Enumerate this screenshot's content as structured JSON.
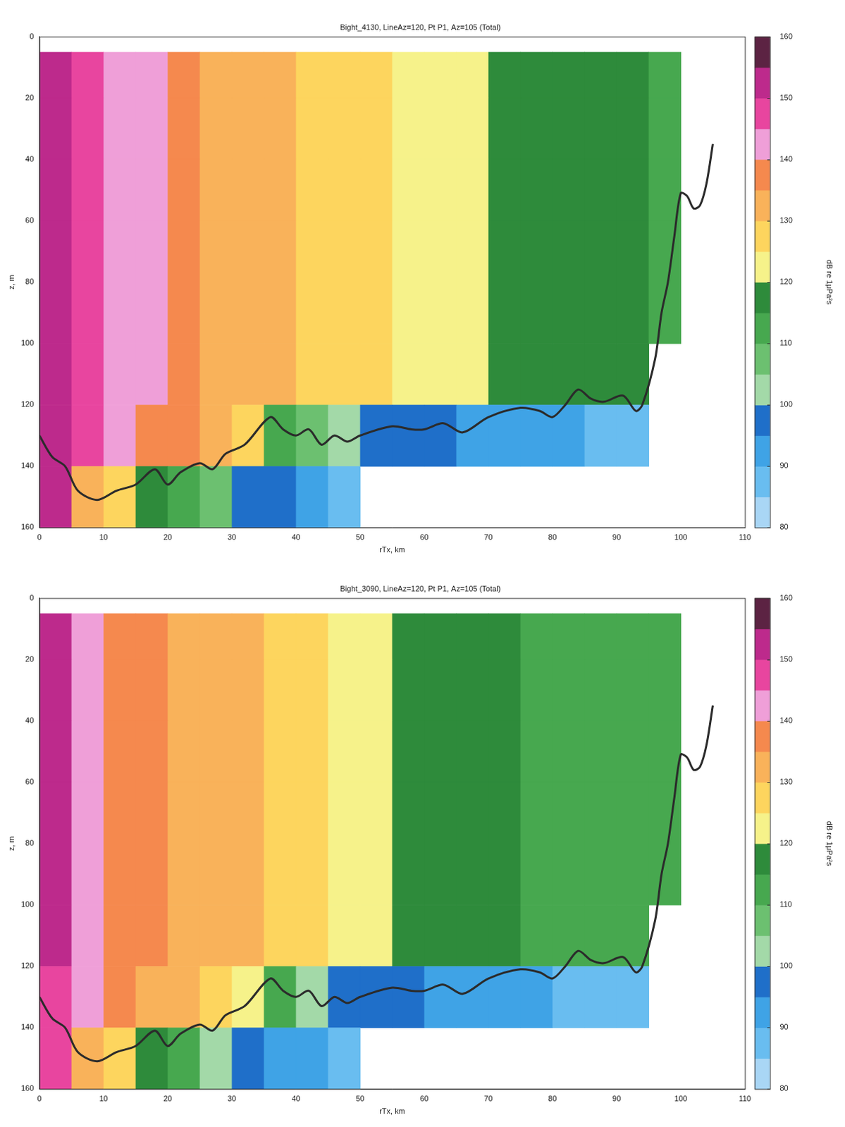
{
  "chart_data": [
    {
      "type": "heatmap",
      "title": "Bight_4130, LineAz=120, Pt P1, Az=105 (Total)",
      "x_label": "rTx, km",
      "y_label": "z, m",
      "xlim": [
        0,
        110
      ],
      "xticks": [
        0,
        10,
        20,
        30,
        40,
        50,
        60,
        70,
        80,
        90,
        100,
        110
      ],
      "ylim": [
        160,
        0
      ],
      "yticks": [
        0,
        20,
        40,
        60,
        80,
        100,
        120,
        140,
        160
      ],
      "grid": false,
      "x_edges": [
        0,
        5,
        10,
        15,
        20,
        25,
        30,
        35,
        40,
        45,
        50,
        55,
        60,
        65,
        70,
        75,
        80,
        85,
        90,
        95,
        100
      ],
      "y_edges": [
        5,
        20,
        40,
        60,
        80,
        100,
        120,
        140,
        160
      ],
      "cells": [
        [
          152,
          147,
          142,
          140,
          136,
          134,
          132,
          130,
          129,
          127,
          126,
          124,
          122,
          121,
          119,
          118,
          117,
          116,
          115,
          114
        ],
        [
          152,
          147,
          142,
          140,
          136,
          134,
          132,
          130,
          129,
          127,
          126,
          124,
          122,
          121,
          119,
          118,
          117,
          116,
          115,
          114
        ],
        [
          152,
          147,
          142,
          140,
          136,
          134,
          132,
          130,
          129,
          127,
          126,
          124,
          122,
          121,
          119,
          118,
          117,
          116,
          115,
          114
        ],
        [
          152,
          147,
          142,
          140,
          136,
          134,
          132,
          130,
          129,
          127,
          126,
          124,
          122,
          121,
          119,
          118,
          117,
          116,
          115,
          114
        ],
        [
          152,
          147,
          142,
          140,
          136,
          134,
          132,
          130,
          129,
          127,
          126,
          124,
          122,
          121,
          119,
          118,
          117,
          116,
          115,
          114
        ],
        [
          152,
          147,
          142,
          140,
          136,
          134,
          132,
          130,
          129,
          127,
          126,
          124,
          122,
          121,
          119,
          118,
          117,
          116,
          115,
          null
        ],
        [
          150,
          146,
          141,
          138,
          135,
          132,
          125,
          110,
          105,
          100,
          97,
          96,
          95,
          94,
          93,
          92,
          90,
          88,
          87,
          null
        ],
        [
          150,
          133,
          128,
          118,
          112,
          106,
          99,
          95,
          91,
          88,
          null,
          null,
          null,
          null,
          null,
          null,
          null,
          null,
          null,
          null
        ]
      ],
      "colorbar": {
        "label": "dB re 1μPa²s",
        "range": [
          80,
          160
        ],
        "ticks": [
          80,
          90,
          100,
          110,
          120,
          130,
          140,
          150,
          160
        ],
        "levels": [
          80,
          85,
          90,
          95,
          100,
          105,
          110,
          115,
          120,
          125,
          130,
          135,
          140,
          145,
          150,
          155,
          160
        ],
        "colors": [
          "#a9d6f5",
          "#69bdf0",
          "#3fa3e6",
          "#1f6fc9",
          "#a3d9a8",
          "#6cc070",
          "#47a84f",
          "#2e8b3b",
          "#f6f28a",
          "#fdd55e",
          "#f9b25a",
          "#f5894e",
          "#ef9fd8",
          "#e8459f",
          "#bd2a8c",
          "#5c2343"
        ]
      },
      "series": [
        {
          "type": "line",
          "color": "#2b2b2b",
          "x": [
            0,
            2,
            4,
            6,
            9,
            12,
            15,
            18,
            20,
            22,
            25,
            27,
            29,
            32,
            36,
            38,
            40,
            42,
            44,
            46,
            48,
            50,
            55,
            58,
            60,
            63,
            66,
            70,
            75,
            78,
            80,
            82,
            84,
            86,
            88,
            91,
            93,
            94,
            96,
            97,
            98,
            99,
            100,
            101,
            102,
            103,
            104,
            105
          ],
          "values": [
            130,
            137,
            140,
            148,
            151,
            148,
            146,
            141,
            146,
            142,
            139,
            141,
            136,
            133,
            124,
            128,
            130,
            128,
            133,
            130,
            132,
            130,
            127,
            128,
            128,
            126,
            129,
            124,
            121,
            122,
            124,
            120,
            115,
            118,
            119,
            117,
            122,
            120,
            105,
            90,
            80,
            65,
            51,
            52,
            56,
            55,
            48,
            35
          ]
        }
      ]
    },
    {
      "type": "heatmap",
      "title": "Bight_3090, LineAz=120, Pt P1, Az=105 (Total)",
      "x_label": "rTx, km",
      "y_label": "z, m",
      "xlim": [
        0,
        110
      ],
      "xticks": [
        0,
        10,
        20,
        30,
        40,
        50,
        60,
        70,
        80,
        90,
        100,
        110
      ],
      "ylim": [
        160,
        0
      ],
      "yticks": [
        0,
        20,
        40,
        60,
        80,
        100,
        120,
        140,
        160
      ],
      "grid": false,
      "x_edges": [
        0,
        5,
        10,
        15,
        20,
        25,
        30,
        35,
        40,
        45,
        50,
        55,
        60,
        65,
        70,
        75,
        80,
        85,
        90,
        95,
        100
      ],
      "y_edges": [
        5,
        20,
        40,
        60,
        80,
        100,
        120,
        140,
        160
      ],
      "cells": [
        [
          150,
          142,
          137,
          135,
          133,
          131,
          130,
          128,
          126,
          123,
          121,
          118,
          117,
          116,
          115,
          114,
          113,
          112,
          112,
          111
        ],
        [
          150,
          142,
          137,
          135,
          133,
          131,
          130,
          128,
          126,
          123,
          121,
          118,
          117,
          116,
          115,
          114,
          113,
          112,
          112,
          111
        ],
        [
          150,
          142,
          137,
          135,
          133,
          131,
          130,
          128,
          126,
          123,
          121,
          118,
          117,
          116,
          115,
          114,
          113,
          112,
          112,
          111
        ],
        [
          150,
          142,
          137,
          135,
          133,
          131,
          130,
          128,
          126,
          123,
          121,
          118,
          117,
          116,
          115,
          114,
          113,
          112,
          112,
          111
        ],
        [
          150,
          142,
          137,
          135,
          133,
          131,
          130,
          128,
          126,
          123,
          121,
          118,
          117,
          116,
          115,
          114,
          113,
          112,
          112,
          111
        ],
        [
          150,
          142,
          137,
          135,
          133,
          131,
          130,
          128,
          126,
          123,
          121,
          118,
          117,
          116,
          115,
          114,
          113,
          112,
          112,
          null
        ],
        [
          148,
          141,
          136,
          134,
          132,
          129,
          122,
          110,
          104,
          99,
          96,
          95,
          94,
          93,
          92,
          91,
          89,
          88,
          87,
          null
        ],
        [
          148,
          130,
          125,
          116,
          110,
          104,
          97,
          93,
          90,
          88,
          null,
          null,
          null,
          null,
          null,
          null,
          null,
          null,
          null,
          null
        ]
      ],
      "colorbar": {
        "label": "dB re 1μPa²s",
        "range": [
          80,
          160
        ],
        "ticks": [
          80,
          90,
          100,
          110,
          120,
          130,
          140,
          150,
          160
        ],
        "levels": [
          80,
          85,
          90,
          95,
          100,
          105,
          110,
          115,
          120,
          125,
          130,
          135,
          140,
          145,
          150,
          155,
          160
        ],
        "colors": [
          "#a9d6f5",
          "#69bdf0",
          "#3fa3e6",
          "#1f6fc9",
          "#a3d9a8",
          "#6cc070",
          "#47a84f",
          "#2e8b3b",
          "#f6f28a",
          "#fdd55e",
          "#f9b25a",
          "#f5894e",
          "#ef9fd8",
          "#e8459f",
          "#bd2a8c",
          "#5c2343"
        ]
      },
      "series": [
        {
          "type": "line",
          "color": "#2b2b2b",
          "x": [
            0,
            2,
            4,
            6,
            9,
            12,
            15,
            18,
            20,
            22,
            25,
            27,
            29,
            32,
            36,
            38,
            40,
            42,
            44,
            46,
            48,
            50,
            55,
            58,
            60,
            63,
            66,
            70,
            75,
            78,
            80,
            82,
            84,
            86,
            88,
            91,
            93,
            94,
            96,
            97,
            98,
            99,
            100,
            101,
            102,
            103,
            104,
            105
          ],
          "values": [
            130,
            137,
            140,
            148,
            151,
            148,
            146,
            141,
            146,
            142,
            139,
            141,
            136,
            133,
            124,
            128,
            130,
            128,
            133,
            130,
            132,
            130,
            127,
            128,
            128,
            126,
            129,
            124,
            121,
            122,
            124,
            120,
            115,
            118,
            119,
            117,
            122,
            120,
            105,
            90,
            80,
            65,
            51,
            52,
            56,
            55,
            48,
            35
          ]
        }
      ]
    }
  ]
}
